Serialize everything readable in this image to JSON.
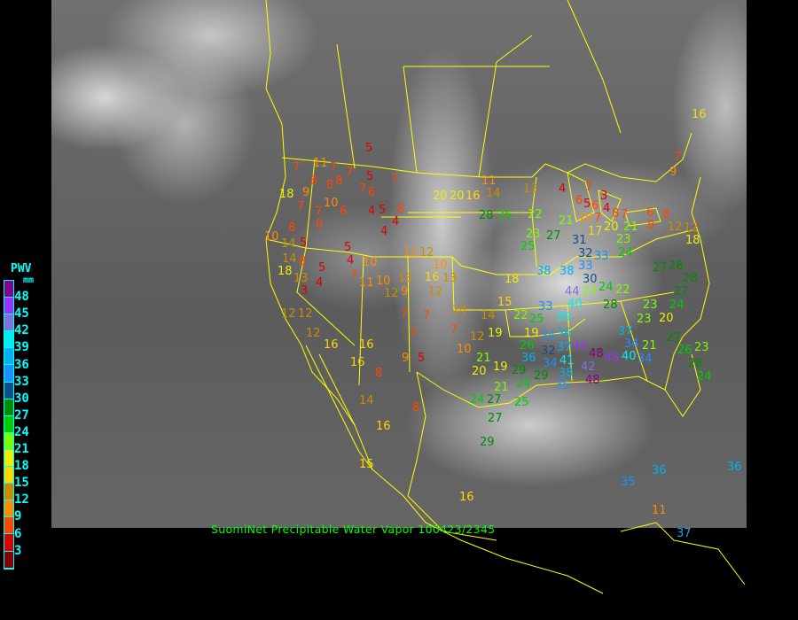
{
  "caption": "SuomiNet Precipitable Water Vapor 100423/2345",
  "legend": {
    "title": "PWV",
    "unit": "mm",
    "labels": [
      "48",
      "45",
      "42",
      "39",
      "36",
      "33",
      "30",
      "27",
      "24",
      "21",
      "18",
      "15",
      "12",
      "9",
      "6",
      "3"
    ],
    "colors": [
      "#8b008b",
      "#9b30ff",
      "#8470d8",
      "#00eeee",
      "#00b2ee",
      "#1e90ff",
      "#104e8b",
      "#008b00",
      "#00cd00",
      "#7cfc00",
      "#eeee00",
      "#ffd700",
      "#cd8c00",
      "#ff8c00",
      "#ff4500",
      "#dd0000",
      "#8b0000"
    ]
  },
  "stations": [
    [
      "5",
      417,
      168
    ],
    [
      "7",
      335,
      190
    ],
    [
      "11",
      358,
      185
    ],
    [
      "7",
      377,
      190
    ],
    [
      "8",
      355,
      205
    ],
    [
      "8",
      373,
      210
    ],
    [
      "8",
      383,
      205
    ],
    [
      "7",
      395,
      195
    ],
    [
      "5",
      418,
      200
    ],
    [
      "7",
      410,
      212
    ],
    [
      "6",
      416,
      218
    ],
    [
      "7",
      446,
      203
    ],
    [
      "18",
      320,
      220
    ],
    [
      "9",
      346,
      218
    ],
    [
      "10",
      370,
      230
    ],
    [
      "7",
      340,
      234
    ],
    [
      "7",
      360,
      240
    ],
    [
      "6",
      388,
      239
    ],
    [
      "8",
      358,
      251
    ],
    [
      "4",
      420,
      239
    ],
    [
      "5",
      432,
      238
    ],
    [
      "8",
      453,
      237
    ],
    [
      "4",
      446,
      250
    ],
    [
      "4",
      434,
      262
    ],
    [
      "8",
      330,
      258
    ],
    [
      "10",
      303,
      268
    ],
    [
      "14",
      322,
      276
    ],
    [
      "5",
      343,
      275
    ],
    [
      "14",
      323,
      293
    ],
    [
      "8",
      340,
      296
    ],
    [
      "5",
      364,
      303
    ],
    [
      "18",
      318,
      305
    ],
    [
      "13",
      332,
      315
    ],
    [
      "3",
      340,
      322
    ],
    [
      "4",
      361,
      320
    ],
    [
      "5",
      393,
      280
    ],
    [
      "4",
      396,
      295
    ],
    [
      "10",
      414,
      297
    ],
    [
      "7",
      400,
      312
    ],
    [
      "11",
      410,
      320
    ],
    [
      "10",
      427,
      318
    ],
    [
      "13",
      454,
      315
    ],
    [
      "12",
      438,
      332
    ],
    [
      "9",
      457,
      330
    ],
    [
      "11",
      460,
      286
    ],
    [
      "12",
      478,
      286
    ],
    [
      "10",
      490,
      297
    ],
    [
      "16",
      483,
      308
    ],
    [
      "13",
      500,
      308
    ],
    [
      "12",
      488,
      330
    ],
    [
      "20",
      493,
      222
    ],
    [
      "20",
      502,
      222
    ],
    [
      "16",
      520,
      222
    ],
    [
      "11",
      548,
      205
    ],
    [
      "14",
      552,
      218
    ],
    [
      "13",
      595,
      214
    ],
    [
      "4",
      635,
      214
    ],
    [
      "7",
      665,
      212
    ],
    [
      "6",
      654,
      227
    ],
    [
      "5",
      663,
      231
    ],
    [
      "6",
      672,
      233
    ],
    [
      "3",
      680,
      222
    ],
    [
      "4",
      684,
      235
    ],
    [
      "10",
      657,
      243
    ],
    [
      "7",
      668,
      243
    ],
    [
      "7",
      705,
      243
    ],
    [
      "6",
      734,
      241
    ],
    [
      "8",
      752,
      243
    ],
    [
      "8",
      734,
      254
    ],
    [
      "12",
      758,
      255
    ],
    [
      "28",
      545,
      244
    ],
    [
      "25",
      566,
      244
    ],
    [
      "22",
      600,
      243
    ],
    [
      "21",
      635,
      250
    ],
    [
      "17",
      665,
      252
    ],
    [
      "20",
      676,
      257
    ],
    [
      "8",
      690,
      255
    ],
    [
      "23",
      598,
      265
    ],
    [
      "27",
      621,
      267
    ],
    [
      "25",
      589,
      276
    ],
    [
      "31",
      652,
      272
    ],
    [
      "32",
      654,
      277
    ],
    [
      "23",
      697,
      268
    ],
    [
      "21",
      708,
      265
    ],
    [
      "24",
      701,
      280
    ],
    [
      "33",
      665,
      290
    ],
    [
      "33",
      660,
      298
    ],
    [
      "38",
      610,
      307
    ],
    [
      "38",
      636,
      307
    ],
    [
      "30",
      662,
      316
    ],
    [
      "18",
      574,
      316
    ],
    [
      "24",
      676,
      325
    ],
    [
      "44",
      642,
      330
    ],
    [
      "40",
      642,
      341
    ],
    [
      "33",
      612,
      347
    ],
    [
      "39",
      626,
      349
    ],
    [
      "28",
      685,
      345
    ],
    [
      "15",
      566,
      342
    ],
    [
      "23",
      648,
      326
    ],
    [
      "22",
      685,
      336
    ],
    [
      "23",
      730,
      345
    ],
    [
      "23",
      723,
      361
    ],
    [
      "24",
      760,
      345
    ],
    [
      "20",
      748,
      360
    ],
    [
      "27",
      741,
      303
    ],
    [
      "28",
      757,
      301
    ],
    [
      "28",
      775,
      315
    ],
    [
      "27",
      765,
      330
    ],
    [
      "14",
      515,
      351
    ],
    [
      "14",
      547,
      357
    ],
    [
      "22",
      584,
      357
    ],
    [
      "25",
      594,
      361
    ],
    [
      "7",
      513,
      373
    ],
    [
      "12",
      535,
      381
    ],
    [
      "19",
      555,
      377
    ],
    [
      "19",
      596,
      377
    ],
    [
      "26",
      590,
      385
    ],
    [
      "34",
      611,
      380
    ],
    [
      "36",
      631,
      377
    ],
    [
      "10",
      520,
      393
    ],
    [
      "21",
      542,
      405
    ],
    [
      "20",
      537,
      420
    ],
    [
      "19",
      557,
      415
    ],
    [
      "36",
      593,
      403
    ],
    [
      "32",
      615,
      397
    ],
    [
      "37",
      631,
      393
    ],
    [
      "45",
      645,
      392
    ],
    [
      "41",
      635,
      402
    ],
    [
      "34",
      625,
      405
    ],
    [
      "38",
      633,
      410
    ],
    [
      "48",
      665,
      400
    ],
    [
      "42",
      660,
      415
    ],
    [
      "48",
      665,
      430
    ],
    [
      "29",
      577,
      415
    ],
    [
      "29",
      605,
      413
    ],
    [
      "24",
      587,
      426
    ],
    [
      "35",
      622,
      425
    ],
    [
      "37",
      702,
      375
    ],
    [
      "34",
      705,
      382
    ],
    [
      "40",
      705,
      397
    ],
    [
      "45",
      693,
      403
    ],
    [
      "34",
      715,
      402
    ],
    [
      "21",
      728,
      397
    ],
    [
      "27",
      756,
      382
    ],
    [
      "26",
      766,
      393
    ],
    [
      "23",
      780,
      393
    ],
    [
      "28",
      780,
      405
    ],
    [
      "24",
      790,
      420
    ],
    [
      "7",
      457,
      355
    ],
    [
      "7",
      482,
      357
    ],
    [
      "7",
      467,
      377
    ],
    [
      "9",
      458,
      405
    ],
    [
      "5",
      476,
      405
    ],
    [
      "8",
      470,
      461
    ],
    [
      "16",
      429,
      482
    ],
    [
      "14",
      410,
      453
    ],
    [
      "15",
      410,
      525
    ],
    [
      "16",
      523,
      562
    ],
    [
      "12",
      322,
      355
    ],
    [
      "12",
      335,
      355
    ],
    [
      "12",
      350,
      377
    ],
    [
      "16",
      370,
      390
    ],
    [
      "16",
      410,
      390
    ],
    [
      "16",
      400,
      410
    ],
    [
      "8",
      428,
      422
    ],
    [
      "24",
      535,
      452
    ],
    [
      "27",
      548,
      452
    ],
    [
      "21",
      562,
      446
    ],
    [
      "27",
      555,
      473
    ],
    [
      "25",
      585,
      455
    ],
    [
      "29",
      546,
      500
    ],
    [
      "35",
      705,
      545
    ],
    [
      "36",
      740,
      532
    ],
    [
      "36",
      825,
      528
    ],
    [
      "11",
      740,
      577
    ],
    [
      "37",
      768,
      603
    ],
    [
      "16",
      785,
      130
    ],
    [
      "7",
      765,
      178
    ],
    [
      "12",
      770,
      258
    ],
    [
      "18",
      778,
      270
    ],
    [
      "9",
      760,
      195
    ]
  ]
}
